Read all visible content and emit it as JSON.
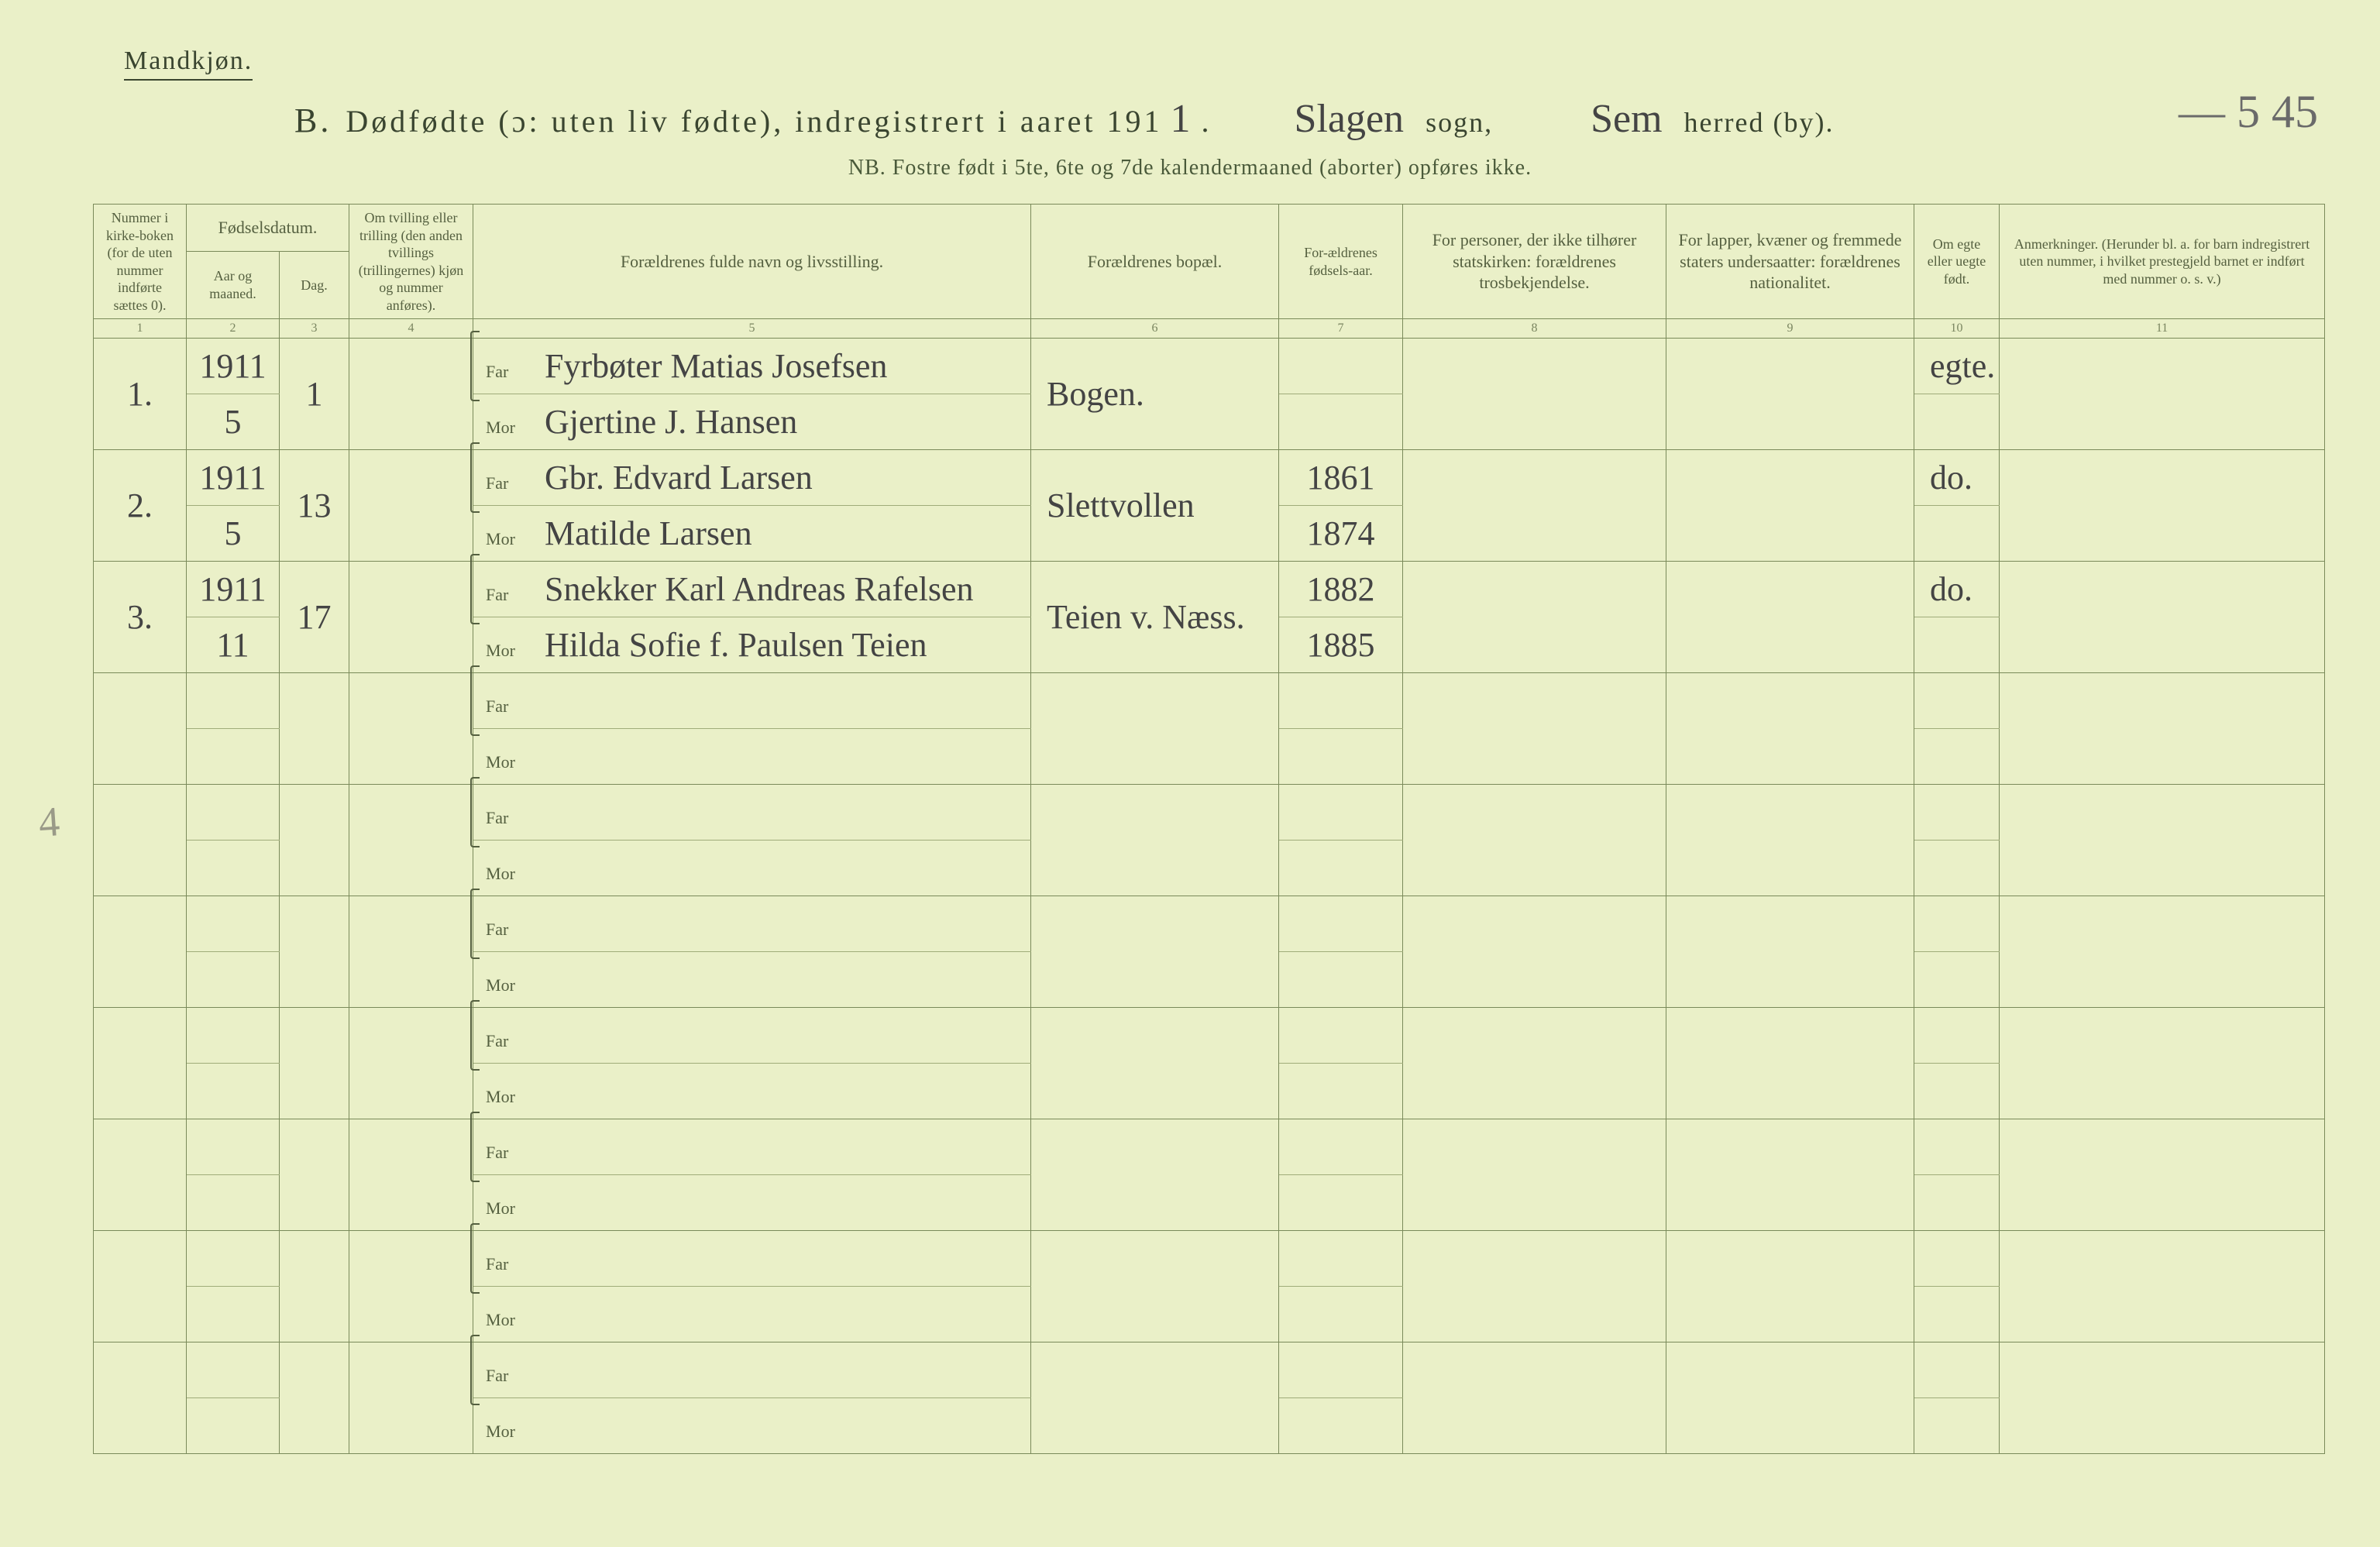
{
  "colors": {
    "page_bg": "#eaf0c8",
    "ink": "#4a5a3a",
    "ink_dark": "#3a4530",
    "handwriting": "#444444",
    "rule": "#7a8a5a",
    "rule_faint": "#a0ac7a",
    "label_small": "#556040"
  },
  "typography": {
    "title_fontsize_pt": 30,
    "header_fontsize_pt": 16,
    "body_handwriting_fontsize_pt": 32,
    "small_label_fontsize_pt": 14
  },
  "header": {
    "gender": "Mandkjøn.",
    "section_letter": "B.",
    "title_main": "Dødfødte (ɔ: uten liv fødte), indregistrert i aaret 191",
    "title_year_suffix": "1",
    "sogn_value": "Slagen",
    "sogn_label": "sogn,",
    "herred_value": "Sem",
    "herred_label": "herred (by).",
    "nb_line": "NB.  Fostre født i 5te, 6te og 7de kalendermaaned (aborter) opføres ikke.",
    "corner_note": "— 5  45"
  },
  "columns": {
    "c1": "Nummer i kirke-boken (for de uten nummer indførte sættes 0).",
    "c2_group": "Fødselsdatum.",
    "c2": "Aar og maaned.",
    "c3": "Dag.",
    "c4": "Om tvilling eller trilling (den anden tvillings (trillingernes) kjøn og nummer anføres).",
    "c5": "Forældrenes fulde navn og livsstilling.",
    "c6": "Forældrenes bopæl.",
    "c7": "For-ældrenes fødsels-aar.",
    "c8": "For personer, der ikke tilhører statskirken: forældrenes trosbekjendelse.",
    "c9": "For lapper, kvæner og fremmede staters undersaatter: forældrenes nationalitet.",
    "c10": "Om egte eller uegte født.",
    "c11": "Anmerkninger. (Herunder bl. a. for barn indregistrert uten nummer, i hvilket prestegjeld barnet er indført med nummer o. s. v.)"
  },
  "column_numbers": [
    "1",
    "2",
    "3",
    "4",
    "5",
    "6",
    "7",
    "8",
    "9",
    "10",
    "11"
  ],
  "parent_labels": {
    "far": "Far",
    "mor": "Mor"
  },
  "rows": [
    {
      "num": "1.",
      "year": "1911",
      "month": "5",
      "day": "1",
      "twin": "",
      "far": "Fyrbøter Matias Josefsen",
      "mor": "Gjertine J. Hansen",
      "bopel": "Bogen.",
      "far_birth": "",
      "mor_birth": "",
      "tros": "",
      "nat": "",
      "egte": "egte.",
      "anm": ""
    },
    {
      "num": "2.",
      "year": "1911",
      "month": "5",
      "day": "13",
      "twin": "",
      "far": "Gbr. Edvard Larsen",
      "mor": "Matilde Larsen",
      "bopel": "Slettvollen",
      "far_birth": "1861",
      "mor_birth": "1874",
      "tros": "",
      "nat": "",
      "egte": "do.",
      "anm": ""
    },
    {
      "num": "3.",
      "year": "1911",
      "month": "11",
      "day": "17",
      "twin": "",
      "far": "Snekker Karl Andreas Rafelsen",
      "mor": "Hilda Sofie f. Paulsen Teien",
      "bopel": "Teien v. Næss.",
      "far_birth": "1882",
      "mor_birth": "1885",
      "tros": "",
      "nat": "",
      "egte": "do.",
      "anm": ""
    },
    {
      "num": "",
      "year": "",
      "month": "",
      "day": "",
      "twin": "",
      "far": "",
      "mor": "",
      "bopel": "",
      "far_birth": "",
      "mor_birth": "",
      "tros": "",
      "nat": "",
      "egte": "",
      "anm": ""
    },
    {
      "num": "",
      "year": "",
      "month": "",
      "day": "",
      "twin": "",
      "far": "",
      "mor": "",
      "bopel": "",
      "far_birth": "",
      "mor_birth": "",
      "tros": "",
      "nat": "",
      "egte": "",
      "anm": ""
    },
    {
      "num": "",
      "year": "",
      "month": "",
      "day": "",
      "twin": "",
      "far": "",
      "mor": "",
      "bopel": "",
      "far_birth": "",
      "mor_birth": "",
      "tros": "",
      "nat": "",
      "egte": "",
      "anm": ""
    },
    {
      "num": "",
      "year": "",
      "month": "",
      "day": "",
      "twin": "",
      "far": "",
      "mor": "",
      "bopel": "",
      "far_birth": "",
      "mor_birth": "",
      "tros": "",
      "nat": "",
      "egte": "",
      "anm": ""
    },
    {
      "num": "",
      "year": "",
      "month": "",
      "day": "",
      "twin": "",
      "far": "",
      "mor": "",
      "bopel": "",
      "far_birth": "",
      "mor_birth": "",
      "tros": "",
      "nat": "",
      "egte": "",
      "anm": ""
    },
    {
      "num": "",
      "year": "",
      "month": "",
      "day": "",
      "twin": "",
      "far": "",
      "mor": "",
      "bopel": "",
      "far_birth": "",
      "mor_birth": "",
      "tros": "",
      "nat": "",
      "egte": "",
      "anm": ""
    },
    {
      "num": "",
      "year": "",
      "month": "",
      "day": "",
      "twin": "",
      "far": "",
      "mor": "",
      "bopel": "",
      "far_birth": "",
      "mor_birth": "",
      "tros": "",
      "nat": "",
      "egte": "",
      "anm": ""
    }
  ],
  "stray_pencil": "4"
}
